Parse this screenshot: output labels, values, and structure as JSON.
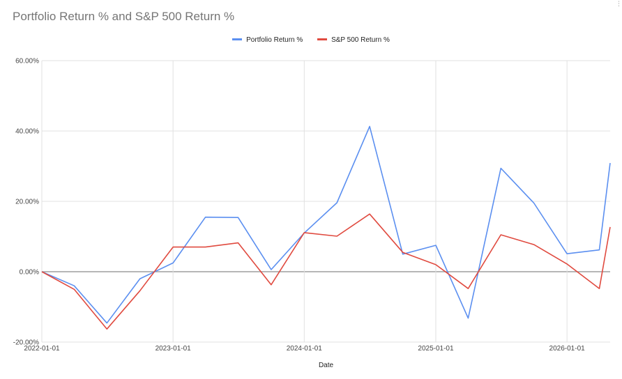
{
  "chart_data": {
    "type": "line",
    "title": "Portfolio Return % and S&P 500 Return %",
    "xlabel": "Date",
    "ylabel": "",
    "ylim": [
      -20,
      60
    ],
    "yticks": [
      -20,
      0,
      20,
      40,
      60
    ],
    "ytick_labels": [
      "-20.00%",
      "0.00%",
      "20.00%",
      "40.00%",
      "60.00%"
    ],
    "xlim": [
      "2022-01-01",
      "2026-05-01"
    ],
    "xticks": [
      "2022-01-01",
      "2023-01-01",
      "2024-01-01",
      "2025-01-01",
      "2026-01-01"
    ],
    "grid": true,
    "legend": "top-center",
    "x": [
      "2022-01-01",
      "2022-04-01",
      "2022-07-01",
      "2022-10-01",
      "2023-01-01",
      "2023-04-01",
      "2023-07-01",
      "2023-10-01",
      "2024-01-01",
      "2024-04-01",
      "2024-07-01",
      "2024-10-01",
      "2025-01-01",
      "2025-04-01",
      "2025-07-01",
      "2025-10-01",
      "2026-01-01",
      "2026-04-01",
      "2026-05-01"
    ],
    "series": [
      {
        "name": "Portfolio Return %",
        "color": "#5b8ff0",
        "values": [
          0,
          -4,
          -14.6,
          -2,
          2.5,
          15.5,
          15.4,
          0.6,
          11,
          19.6,
          41.3,
          5,
          7.5,
          -13.2,
          29.4,
          19.5,
          5.1,
          6.2,
          30.9
        ]
      },
      {
        "name": "S&P 500 Return %",
        "color": "#e04a3f",
        "values": [
          0,
          -5,
          -16.3,
          -5.4,
          7,
          7,
          8.2,
          -3.7,
          11.1,
          10.1,
          16.4,
          5.5,
          2,
          -4.8,
          10.5,
          7.7,
          2.2,
          -4.8,
          12.7
        ]
      }
    ],
    "zero_line_color": "#9e9e9e"
  }
}
